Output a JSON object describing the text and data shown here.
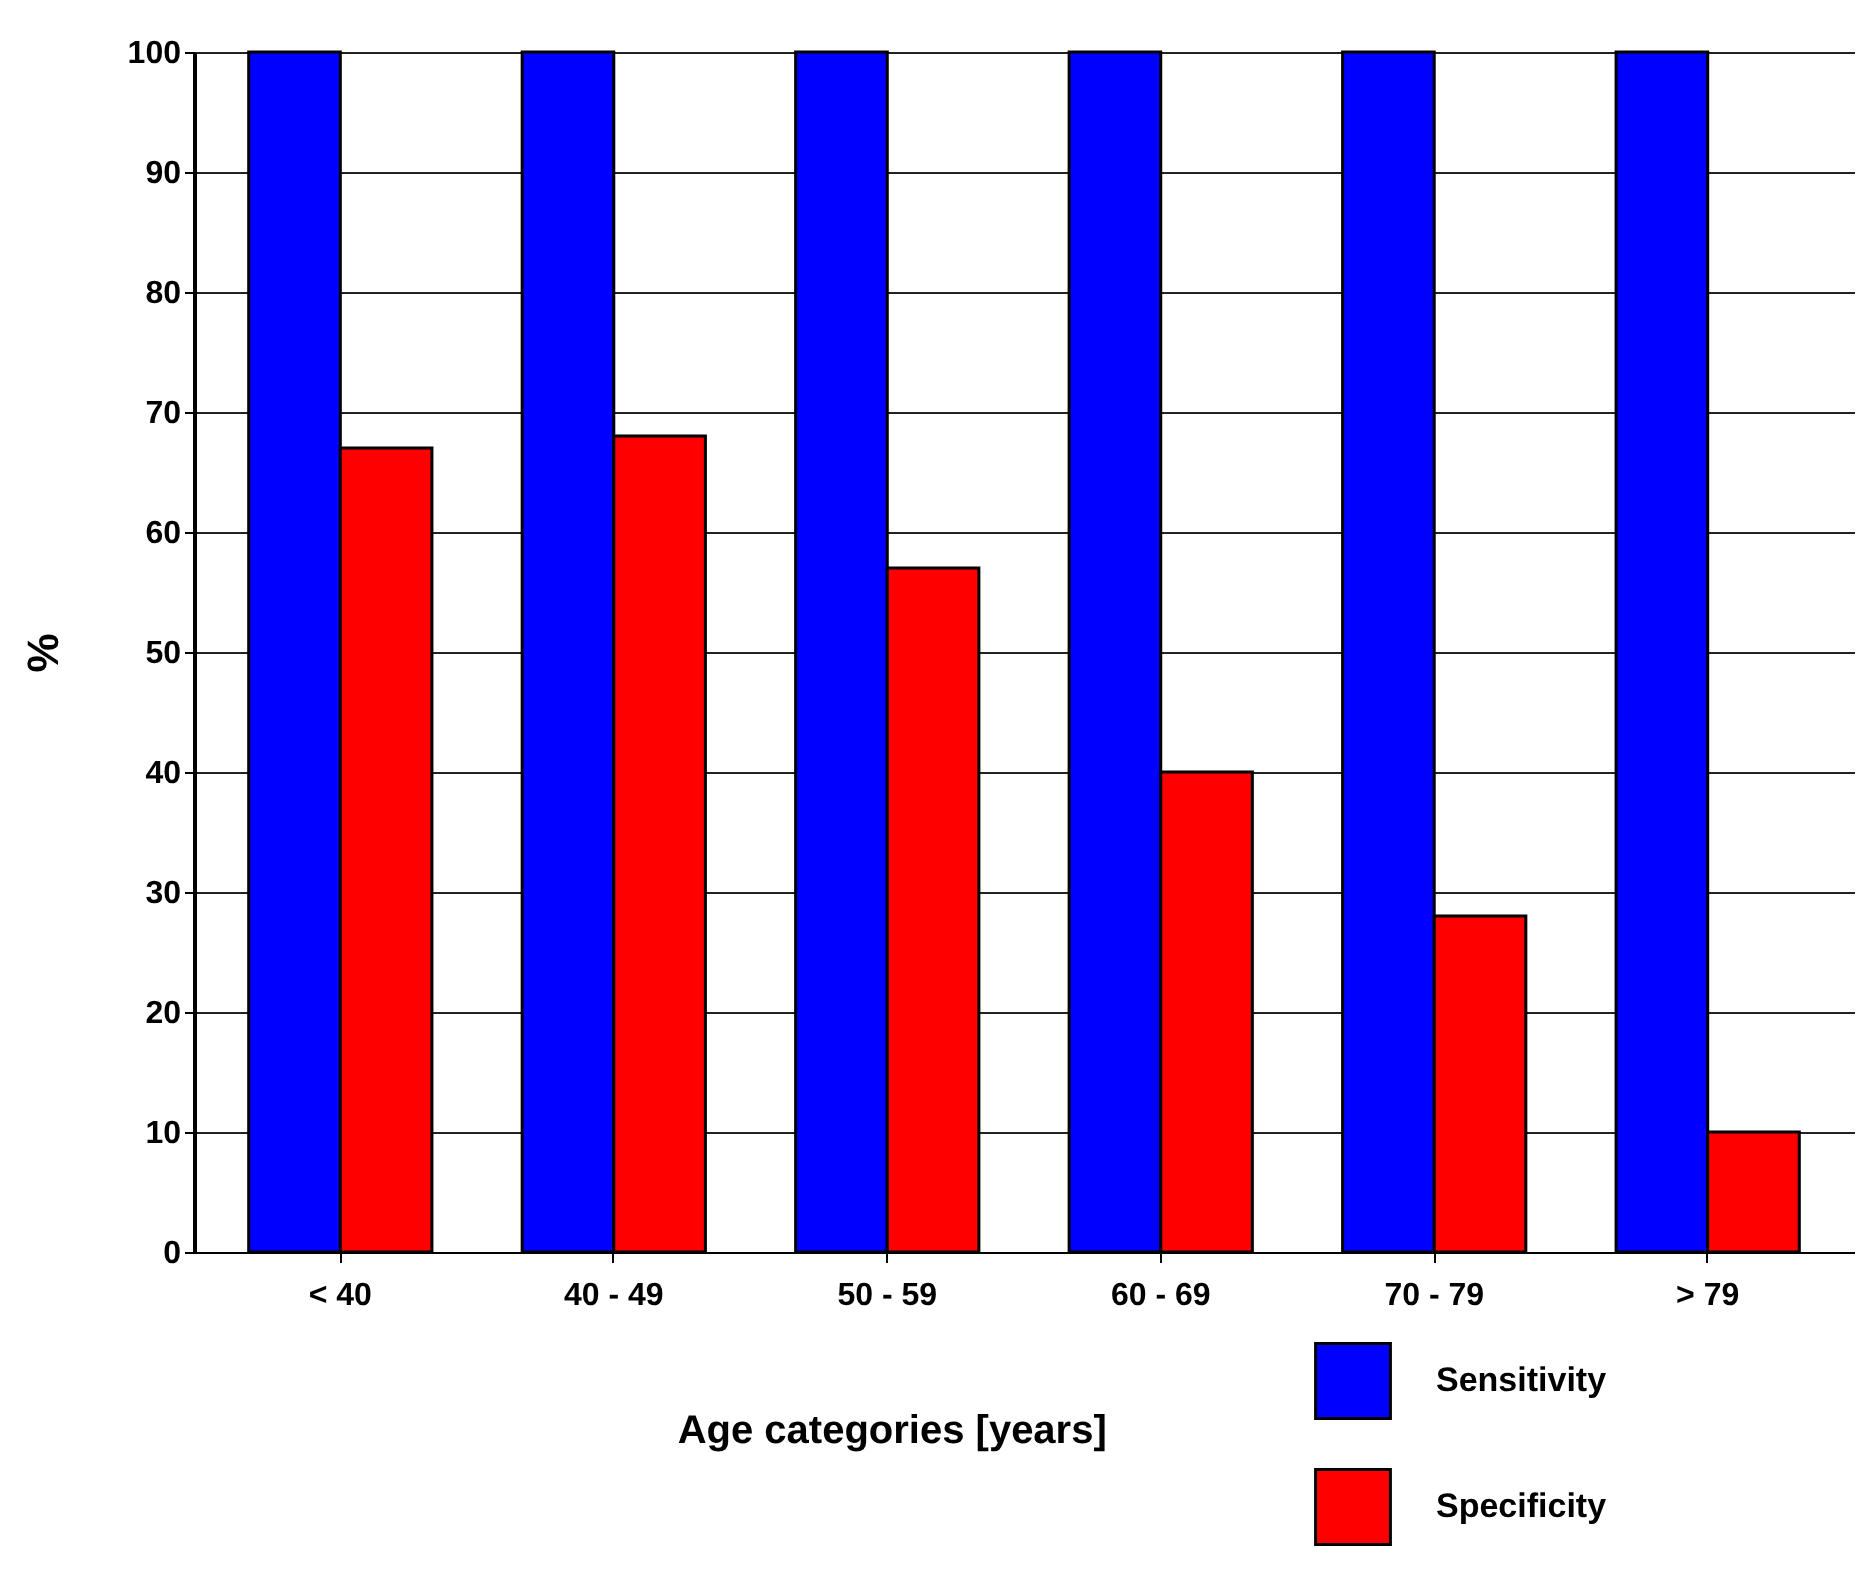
{
  "chart_data": {
    "type": "bar",
    "xlabel": "Age categories [years]",
    "ylabel": "%",
    "categories": [
      "< 40",
      "40 - 49",
      "50 - 59",
      "60 - 69",
      "70 - 79",
      "> 79"
    ],
    "series": [
      {
        "name": "Sensitivity",
        "color": "#0000ff",
        "values": [
          100,
          100,
          100,
          100,
          100,
          100
        ]
      },
      {
        "name": "Specificity",
        "color": "#ff0000",
        "values": [
          67,
          68,
          57,
          40,
          28,
          10
        ]
      }
    ],
    "ylim": [
      0,
      100
    ],
    "yticks": [
      0,
      10,
      20,
      30,
      40,
      50,
      60,
      70,
      80,
      90,
      100
    ],
    "grid": "y",
    "legend": "bottom right"
  }
}
